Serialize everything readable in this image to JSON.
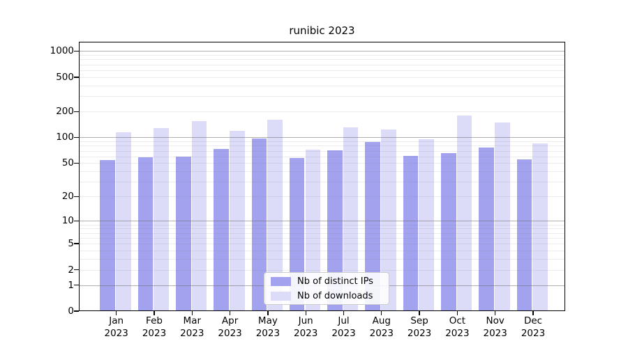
{
  "title": "runibic 2023",
  "colors": {
    "ips_bar": "#a2a2ef",
    "downloads_bar": "#dcdcf8",
    "axis": "#000000",
    "grid_major": "#6e6e6e",
    "grid_minor": "#d9d9d9",
    "legend_border": "#cccccc"
  },
  "legend": {
    "entries": [
      {
        "label": "Nb of distinct IPs",
        "color_key": "ips_bar"
      },
      {
        "label": "Nb of downloads",
        "color_key": "downloads_bar"
      }
    ]
  },
  "chart_data": {
    "type": "bar",
    "title": "runibic 2023",
    "xlabel": "",
    "ylabel": "",
    "scale": "log1p",
    "grid": true,
    "legend_position": "bottom-center",
    "year": "2023",
    "months": [
      "Jan",
      "Feb",
      "Mar",
      "Apr",
      "May",
      "Jun",
      "Jul",
      "Aug",
      "Sep",
      "Oct",
      "Nov",
      "Dec"
    ],
    "categories": [
      "Jan 2023",
      "Feb 2023",
      "Mar 2023",
      "Apr 2023",
      "May 2023",
      "Jun 2023",
      "Jul 2023",
      "Aug 2023",
      "Sep 2023",
      "Oct 2023",
      "Nov 2023",
      "Dec 2023"
    ],
    "series": [
      {
        "name": "Nb of distinct IPs",
        "values": [
          54,
          59,
          60,
          73,
          98,
          57,
          71,
          88,
          61,
          66,
          76,
          55
        ]
      },
      {
        "name": "Nb of downloads",
        "values": [
          115,
          128,
          155,
          120,
          160,
          72,
          132,
          125,
          95,
          180,
          150,
          85
        ]
      }
    ],
    "y_ticks": [
      0,
      1,
      2,
      5,
      10,
      20,
      50,
      100,
      200,
      500,
      1000
    ],
    "y_grid_major": [
      1,
      10,
      100,
      1000
    ],
    "y_grid_minor": [
      2,
      3,
      4,
      5,
      6,
      7,
      8,
      9,
      20,
      30,
      40,
      50,
      60,
      70,
      80,
      90,
      200,
      300,
      400,
      500,
      600,
      700,
      800,
      900
    ],
    "ylim": [
      0,
      1280
    ]
  }
}
